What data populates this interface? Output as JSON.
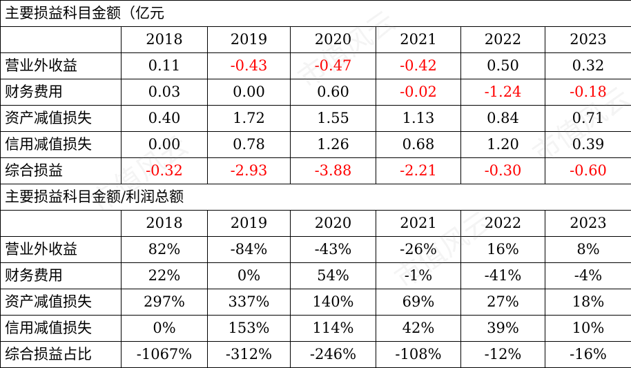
{
  "years": [
    "2018",
    "2019",
    "2020",
    "2021",
    "2022",
    "2023"
  ],
  "section1": {
    "title": "主要损益科目金额（亿元",
    "rows": [
      {
        "label": "营业外收益",
        "values": [
          "0.11",
          "-0.43",
          "-0.47",
          "-0.42",
          "0.50",
          "0.32"
        ],
        "negative": [
          false,
          true,
          true,
          true,
          false,
          false
        ]
      },
      {
        "label": "财务费用",
        "values": [
          "0.03",
          "0.00",
          "0.60",
          "-0.02",
          "-1.24",
          "-0.18"
        ],
        "negative": [
          false,
          false,
          false,
          true,
          true,
          true
        ]
      },
      {
        "label": "资产减值损失",
        "values": [
          "0.40",
          "1.72",
          "1.55",
          "1.13",
          "0.84",
          "0.71"
        ],
        "negative": [
          false,
          false,
          false,
          false,
          false,
          false
        ]
      },
      {
        "label": "信用减值损失",
        "values": [
          "0.00",
          "0.78",
          "1.26",
          "0.68",
          "1.20",
          "0.39"
        ],
        "negative": [
          false,
          false,
          false,
          false,
          false,
          false
        ]
      },
      {
        "label": "综合损益",
        "values": [
          "-0.32",
          "-2.93",
          "-3.88",
          "-2.21",
          "-0.30",
          "-0.60"
        ],
        "negative": [
          true,
          true,
          true,
          true,
          true,
          true
        ]
      }
    ]
  },
  "section2": {
    "title": "主要损益科目金额/利润总额",
    "rows": [
      {
        "label": "营业外收益",
        "values": [
          "82%",
          "-84%",
          "-43%",
          "-26%",
          "16%",
          "8%"
        ]
      },
      {
        "label": "财务费用",
        "values": [
          "22%",
          "0%",
          "54%",
          "-1%",
          "-41%",
          "-4%"
        ]
      },
      {
        "label": "资产减值损失",
        "values": [
          "297%",
          "337%",
          "140%",
          "69%",
          "27%",
          "18%"
        ]
      },
      {
        "label": "信用减值损失",
        "values": [
          "0%",
          "153%",
          "114%",
          "42%",
          "39%",
          "10%"
        ]
      },
      {
        "label": "综合损益占比",
        "values": [
          "-1067%",
          "-312%",
          "-246%",
          "-108%",
          "-12%",
          "-16%"
        ]
      }
    ]
  },
  "watermark_text": "市值风云",
  "colors": {
    "negative": "#ff0000",
    "text": "#000000",
    "border": "#000000"
  }
}
